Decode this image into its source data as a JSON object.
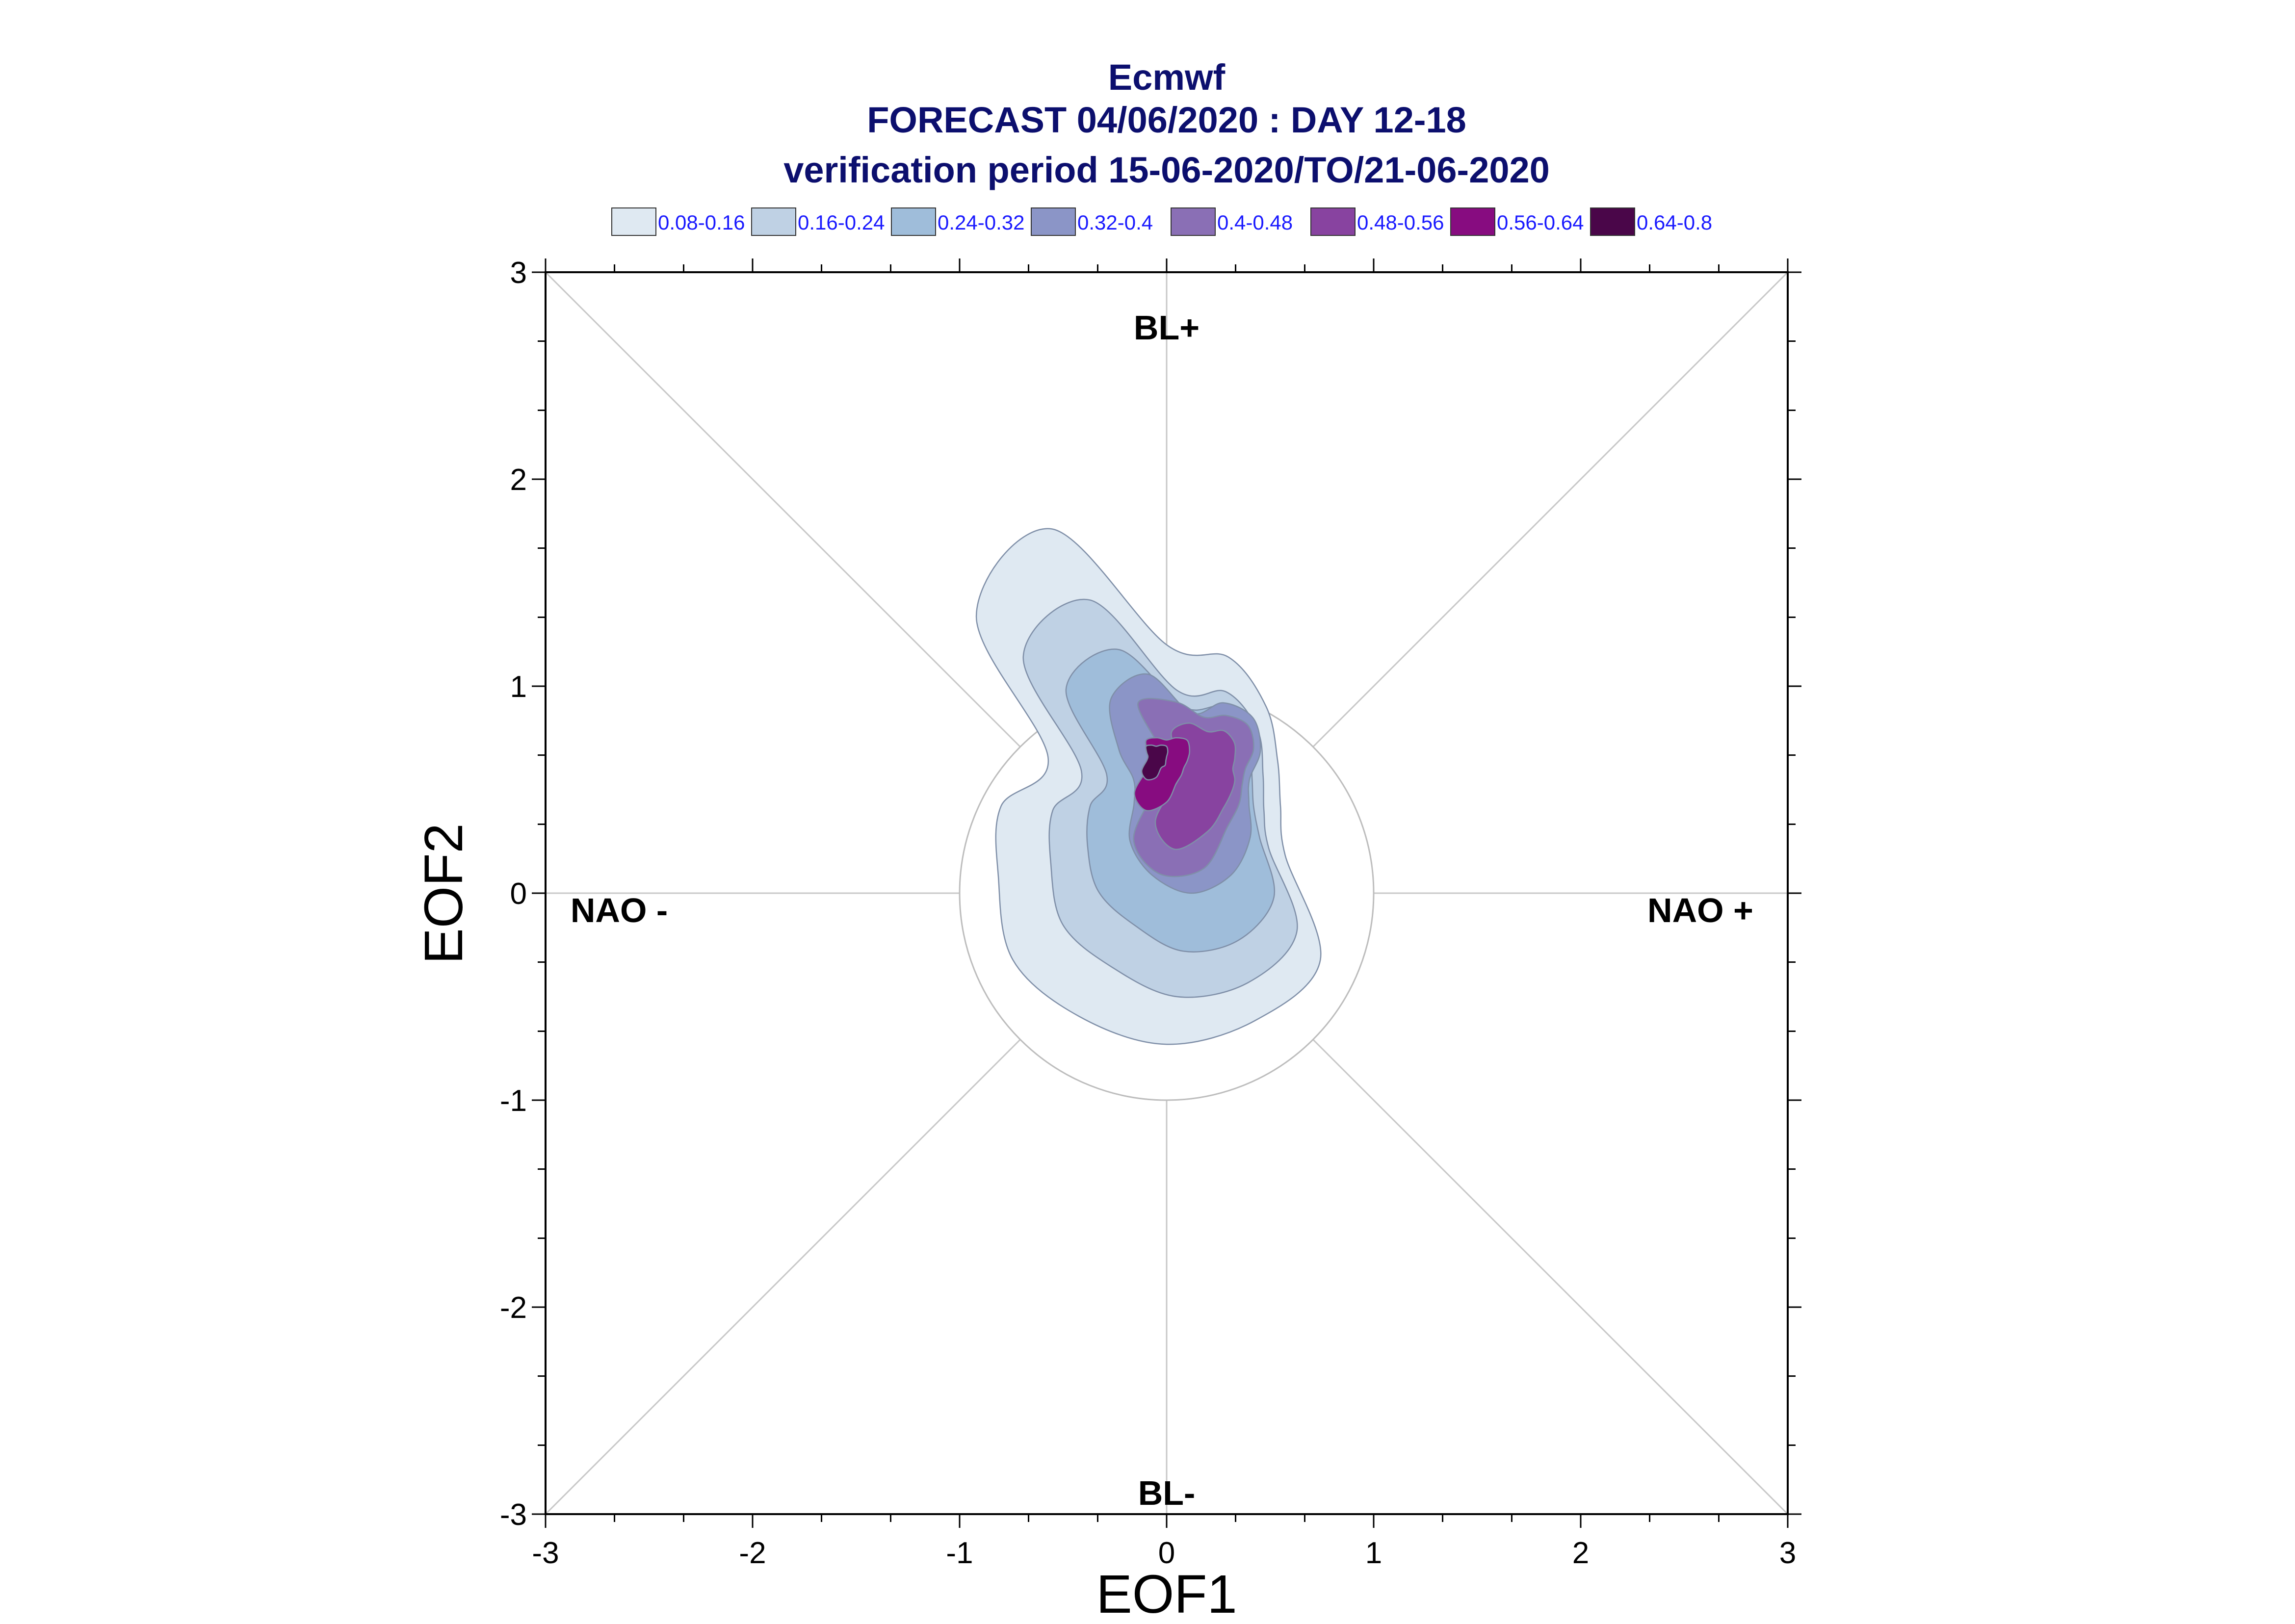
{
  "chart_data": {
    "type": "contour",
    "title_lines": [
      "Ecmwf",
      "FORECAST 04/06/2020 : DAY 12-18",
      "verification period 15-06-2020/TO/21-06-2020"
    ],
    "xlabel": "EOF1",
    "ylabel": "EOF2",
    "xlim": [
      -3,
      3
    ],
    "ylim": [
      -3,
      3
    ],
    "x_ticks": [
      "-3",
      "-2",
      "-1",
      "0",
      "1",
      "2",
      "3"
    ],
    "y_ticks": [
      "-3",
      "-2",
      "-1",
      "0",
      "1",
      "2",
      "3"
    ],
    "regime_labels": {
      "top": "BL+",
      "bottom": "BL-",
      "left": "NAO -",
      "right": "NAO +"
    },
    "reference_circle_radius": 1,
    "legend": [
      {
        "label": "0.08-0.16",
        "color": "#dfe9f2"
      },
      {
        "label": "0.16-0.24",
        "color": "#bfd1e4"
      },
      {
        "label": "0.24-0.32",
        "color": "#9fbdda"
      },
      {
        "label": "0.32-0.4",
        "color": "#8b95c7"
      },
      {
        "label": "0.4-0.48",
        "color": "#8a6fb5"
      },
      {
        "label": "0.48-0.56",
        "color": "#8843a0"
      },
      {
        "label": "0.56-0.64",
        "color": "#870c80"
      },
      {
        "label": "0.64-0.8",
        "color": "#4a0649"
      }
    ],
    "density_levels": [
      {
        "level": "0.08-0.16",
        "center": [
          0.0,
          0.42
        ],
        "r": [
          0.78,
          0.78,
          0.68,
          0.58,
          0.55,
          0.62,
          1.05,
          1.12,
          1.15,
          1.1,
          1.05,
          0.88,
          0.8,
          0.62,
          1.3,
          1.45
        ]
      },
      {
        "level": "0.16-0.24",
        "center": [
          0.05,
          0.4
        ],
        "r": [
          0.58,
          0.62,
          0.55,
          0.45,
          0.42,
          0.48,
          0.82,
          0.9,
          0.9,
          0.82,
          0.78,
          0.66,
          0.6,
          0.5,
          1.05,
          1.1
        ]
      },
      {
        "level": "0.24-0.32",
        "center": [
          0.08,
          0.42
        ],
        "r": [
          0.48,
          0.52,
          0.45,
          0.36,
          0.34,
          0.4,
          0.62,
          0.7,
          0.7,
          0.62,
          0.58,
          0.5,
          0.45,
          0.4,
          0.8,
          0.82
        ]
      },
      {
        "level": "0.32-0.4",
        "center": [
          0.12,
          0.55
        ],
        "r": [
          0.32,
          0.4,
          0.42,
          0.36,
          0.28,
          0.3,
          0.4,
          0.5,
          0.55,
          0.5,
          0.42,
          0.3,
          0.28,
          0.38,
          0.55,
          0.55
        ]
      },
      {
        "level": "0.4-0.48",
        "center": [
          0.18,
          0.6
        ],
        "r": [
          0.25,
          0.28,
          0.3,
          0.26,
          0.2,
          0.2,
          0.24,
          0.3,
          0.48,
          0.55,
          0.48,
          0.25,
          0.2,
          0.22,
          0.45,
          0.35
        ]
      },
      {
        "level": "0.48-0.56",
        "center": [
          0.2,
          0.6
        ],
        "r": [
          0.18,
          0.2,
          0.18,
          0.14,
          0.12,
          0.14,
          0.16,
          0.2,
          0.3,
          0.42,
          0.36,
          0.16,
          0.12,
          0.15,
          0.25,
          0.24
        ]
      },
      {
        "level": "0.56-0.64",
        "center": [
          0.0,
          0.64
        ],
        "r": [
          0.1,
          0.12,
          0.14,
          0.12,
          0.1,
          0.09,
          0.1,
          0.12,
          0.2,
          0.26,
          0.22,
          0.1,
          0.09,
          0.1,
          0.14,
          0.12
        ]
      },
      {
        "level": "0.64-0.8",
        "center": [
          -0.05,
          0.66
        ],
        "r": [
          0.05,
          0.06,
          0.07,
          0.06,
          0.05,
          0.05,
          0.06,
          0.06,
          0.1,
          0.12,
          0.1,
          0.05,
          0.04,
          0.05,
          0.07,
          0.06
        ]
      }
    ],
    "grid": "diagonals-and-axes"
  }
}
